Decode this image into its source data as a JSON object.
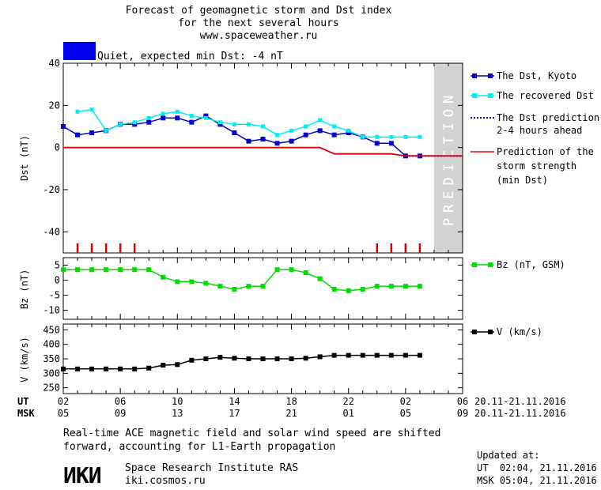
{
  "header": {
    "title_line1": "Forecast of geomagnetic storm and Dst index",
    "title_line2": "for the next several hours",
    "title_line3": "www.spaceweather.ru"
  },
  "status": {
    "text": "Quiet, expected min Dst: -4 nT",
    "color": "#0000ee"
  },
  "prediction_label": "PREDICTION",
  "axes": {
    "dst_label": "Dst (nT)",
    "bz_label": "Bz (nT)",
    "v_label": "V (km/s)"
  },
  "time_axis": {
    "ut_label": "UT",
    "msk_label": "MSK",
    "ut_ticks": [
      "02",
      "06",
      "10",
      "14",
      "18",
      "22",
      "02",
      "06"
    ],
    "msk_ticks": [
      "05",
      "09",
      "13",
      "17",
      "21",
      "01",
      "05",
      "09"
    ],
    "ut_range": "20.11-21.11.2016",
    "msk_range": "20.11-21.11.2016"
  },
  "footer": {
    "note_line1": "Real-time ACE magnetic field and solar wind speed are shifted",
    "note_line2": "forward, accounting for L1-Earth propagation",
    "logo": "ИКИ",
    "inst_name": "Space Research Institute RAS",
    "inst_url": "iki.cosmos.ru",
    "updated_label": "Updated at:",
    "updated_ut": "UT  02:04, 21.11.2016",
    "updated_msk": "MSK 05:04, 21.11.2016"
  },
  "colors": {
    "dst_kyoto": "#0000cc",
    "dst_recovered": "#00eeee",
    "dst_prediction": "#0000cc",
    "storm_strength": "#dd0000",
    "bz": "#00dd00",
    "v": "#000000",
    "prediction_band": "#d3d3d3"
  },
  "chart_data": [
    {
      "type": "line",
      "panel": "dst",
      "x_unit": "hours since 00 UT 20.11.2016",
      "xlim": [
        2,
        30
      ],
      "ylim": [
        -50,
        40
      ],
      "yticks": [
        40,
        20,
        0,
        -20,
        -40
      ],
      "prediction_from": 28,
      "legend": [
        "The Dst, Kyoto",
        "The recovered Dst",
        "The Dst prediction",
        "2-4 hours ahead",
        "Prediction of the",
        "storm strength",
        "(min Dst)"
      ],
      "series": [
        {
          "name": "The Dst, Kyoto",
          "x": [
            2,
            3,
            4,
            5,
            6,
            7,
            8,
            9,
            10,
            11,
            12,
            13,
            14,
            15,
            16,
            17,
            18,
            19,
            20,
            21,
            22,
            23,
            24,
            25,
            26,
            27
          ],
          "y": [
            10,
            6,
            7,
            8,
            11,
            11,
            12,
            14,
            14,
            12,
            15,
            11,
            7,
            3,
            4,
            2,
            3,
            6,
            8,
            6,
            7,
            5,
            2,
            2,
            -4,
            -4
          ]
        },
        {
          "name": "The recovered Dst",
          "x": [
            3,
            4,
            5,
            6,
            7,
            8,
            9,
            10,
            11,
            12,
            13,
            14,
            15,
            16,
            17,
            18,
            19,
            20,
            21,
            22,
            23,
            24,
            25,
            26,
            27
          ],
          "y": [
            17,
            18,
            8,
            11,
            12,
            14,
            16,
            17,
            15,
            14,
            12,
            11,
            11,
            10,
            6,
            8,
            10,
            13,
            10,
            8,
            5,
            5,
            5,
            5,
            5
          ]
        },
        {
          "name": "The Dst prediction",
          "x": [
            26,
            27,
            28,
            29,
            30
          ],
          "y": [
            -4,
            -4,
            -4,
            -4,
            -4
          ]
        },
        {
          "name": "Prediction of the storm strength",
          "x": [
            2,
            20,
            21,
            25,
            26,
            30
          ],
          "y": [
            0,
            0,
            -3,
            -3,
            -4,
            -4
          ]
        }
      ],
      "red_markers_x": [
        3,
        4,
        5,
        6,
        7,
        24,
        25,
        26,
        27
      ]
    },
    {
      "type": "line",
      "panel": "bz",
      "xlim": [
        2,
        30
      ],
      "ylim": [
        -13,
        7.5
      ],
      "yticks": [
        5,
        0,
        -5,
        -10
      ],
      "legend": [
        "Bz (nT, GSM)"
      ],
      "series": [
        {
          "name": "Bz (nT, GSM)",
          "x": [
            2,
            3,
            4,
            5,
            6,
            7,
            8,
            9,
            10,
            11,
            12,
            13,
            14,
            15,
            16,
            17,
            18,
            19,
            20,
            21,
            22,
            23,
            24,
            25,
            26,
            27
          ],
          "y": [
            3.5,
            3.5,
            3.5,
            3.5,
            3.5,
            3.5,
            3.5,
            1,
            -0.5,
            -0.5,
            -1,
            -2,
            -3,
            -2,
            -2,
            3.5,
            3.5,
            2.5,
            0.5,
            -3,
            -3.5,
            -3,
            -2,
            -2,
            -2,
            -2
          ]
        }
      ]
    },
    {
      "type": "line",
      "panel": "v",
      "xlim": [
        2,
        30
      ],
      "ylim": [
        230,
        470
      ],
      "yticks": [
        450,
        400,
        350,
        300,
        250
      ],
      "legend": [
        "V (km/s)"
      ],
      "series": [
        {
          "name": "V (km/s)",
          "x": [
            2,
            3,
            4,
            5,
            6,
            7,
            8,
            9,
            10,
            11,
            12,
            13,
            14,
            15,
            16,
            17,
            18,
            19,
            20,
            21,
            22,
            23,
            24,
            25,
            26,
            27
          ],
          "y": [
            315,
            315,
            315,
            315,
            315,
            315,
            318,
            328,
            330,
            345,
            350,
            355,
            352,
            350,
            350,
            350,
            350,
            352,
            357,
            362,
            362,
            362,
            362,
            362,
            362,
            362
          ]
        }
      ]
    }
  ]
}
